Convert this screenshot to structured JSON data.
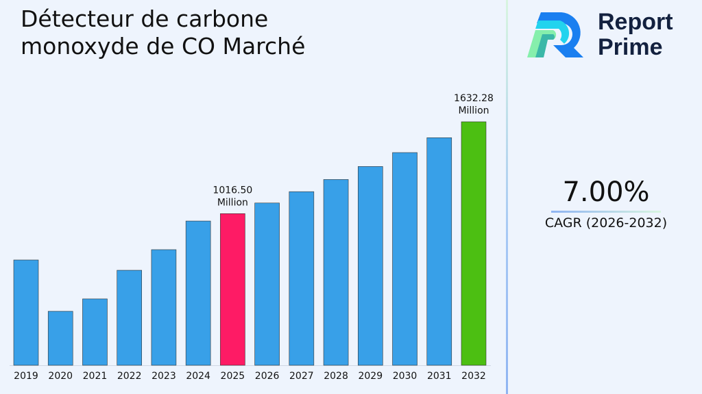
{
  "chart_data": {
    "type": "bar",
    "title": "Détecteur de carbone monoxyde de CO Marché",
    "categories": [
      "2019",
      "2020",
      "2021",
      "2022",
      "2023",
      "2024",
      "2025",
      "2026",
      "2027",
      "2028",
      "2029",
      "2030",
      "2031",
      "2032"
    ],
    "values": [
      706,
      362,
      445,
      637,
      775,
      967,
      1016.5,
      1087.7,
      1163.8,
      1245.3,
      1332.5,
      1425.8,
      1525.5,
      1632.28
    ],
    "annotations": [
      {
        "index": 6,
        "lines": [
          "1016.50",
          "Million"
        ]
      },
      {
        "index": 13,
        "lines": [
          "1632.28",
          "Million"
        ]
      }
    ],
    "colors": {
      "default": "#38a0e8",
      "highlight_2025": "#fe1b65",
      "highlight_2032": "#4cbf12"
    },
    "ylim": [
      0,
      1700
    ],
    "grid": false,
    "legend": "none"
  },
  "brand": {
    "line1": "Report",
    "line2": "Prime"
  },
  "cagr": {
    "value": "7.00%",
    "label": "CAGR (2026-2032)"
  }
}
